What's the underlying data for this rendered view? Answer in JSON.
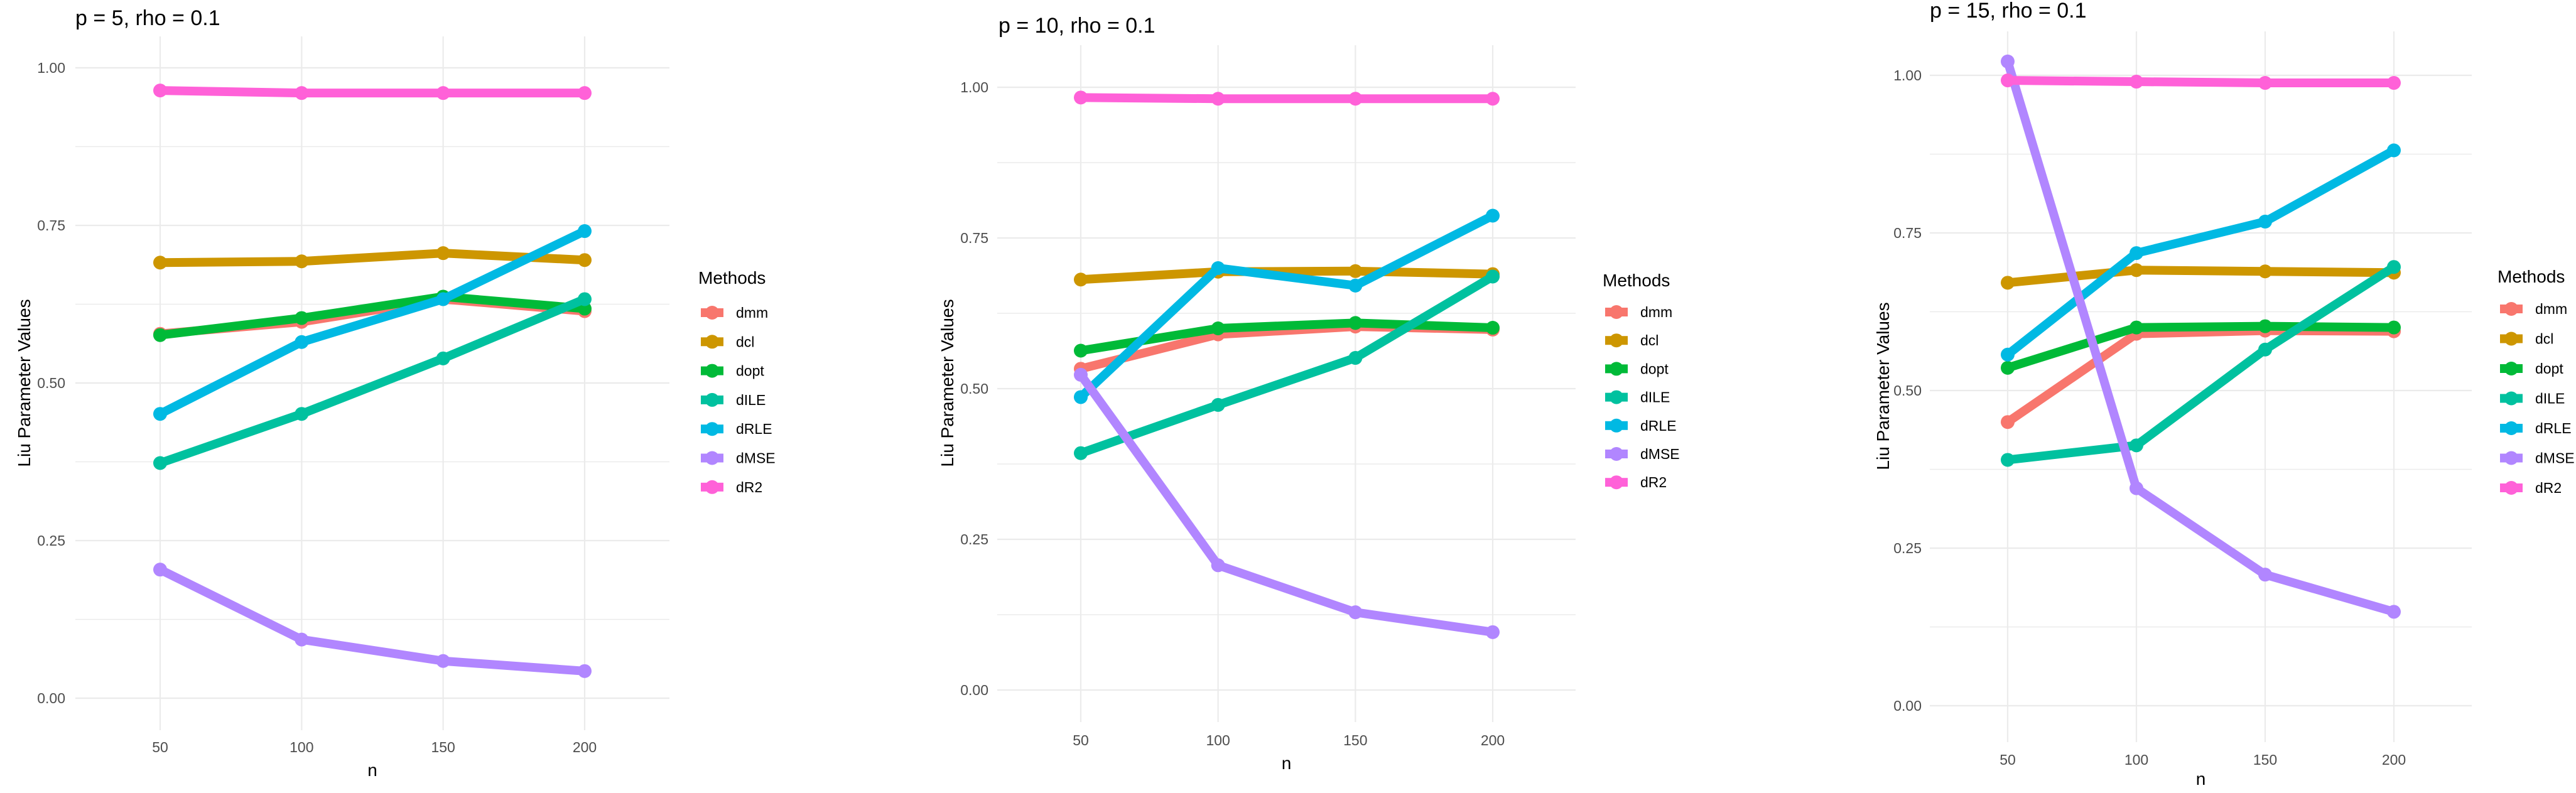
{
  "figure": {
    "legend_title": "Methods",
    "methods": [
      {
        "name": "dmm",
        "color": "#F8766D"
      },
      {
        "name": "dcl",
        "color": "#CD9600"
      },
      {
        "name": "dopt",
        "color": "#00BA38"
      },
      {
        "name": "dILE",
        "color": "#00C19F"
      },
      {
        "name": "dRLE",
        "color": "#00B9E3"
      },
      {
        "name": "dMSE",
        "color": "#B186FF"
      },
      {
        "name": "dR2",
        "color": "#FF61D8"
      }
    ]
  },
  "chart_data": [
    {
      "type": "line",
      "title": "p = 5, rho = 0.1",
      "xlabel": "n",
      "ylabel": "Liu Parameter Values",
      "x": [
        50,
        100,
        150,
        200
      ],
      "x_ticks": [
        "50",
        "100",
        "150",
        "200"
      ],
      "y_ticks": [
        "0.00",
        "0.25",
        "0.50",
        "0.75",
        "1.00"
      ],
      "ylim": [
        0,
        1
      ],
      "grid": true,
      "legend_position": "right",
      "legend_title": "Methods",
      "series": [
        {
          "name": "dmm",
          "values": [
            0.578,
            0.597,
            0.633,
            0.614
          ]
        },
        {
          "name": "dcl",
          "values": [
            0.691,
            0.693,
            0.706,
            0.695
          ]
        },
        {
          "name": "dopt",
          "values": [
            0.576,
            0.603,
            0.637,
            0.618
          ]
        },
        {
          "name": "dILE",
          "values": [
            0.373,
            0.451,
            0.539,
            0.633
          ]
        },
        {
          "name": "dRLE",
          "values": [
            0.451,
            0.565,
            0.633,
            0.741
          ]
        },
        {
          "name": "dMSE",
          "values": [
            0.204,
            0.093,
            0.059,
            0.043
          ]
        },
        {
          "name": "dR2",
          "values": [
            0.964,
            0.96,
            0.96,
            0.96
          ]
        }
      ]
    },
    {
      "type": "line",
      "title": "p = 10, rho = 0.1",
      "xlabel": "n",
      "ylabel": "Liu Parameter Values",
      "x": [
        50,
        100,
        150,
        200
      ],
      "x_ticks": [
        "50",
        "100",
        "150",
        "200"
      ],
      "y_ticks": [
        "0.00",
        "0.25",
        "0.50",
        "0.75",
        "1.00"
      ],
      "ylim": [
        0,
        1
      ],
      "grid": true,
      "legend_position": "right",
      "legend_title": "Methods",
      "series": [
        {
          "name": "dmm",
          "values": [
            0.533,
            0.59,
            0.603,
            0.598
          ]
        },
        {
          "name": "dcl",
          "values": [
            0.681,
            0.694,
            0.695,
            0.69
          ]
        },
        {
          "name": "dopt",
          "values": [
            0.563,
            0.6,
            0.609,
            0.601
          ]
        },
        {
          "name": "dILE",
          "values": [
            0.393,
            0.473,
            0.551,
            0.686
          ]
        },
        {
          "name": "dRLE",
          "values": [
            0.486,
            0.7,
            0.671,
            0.787
          ]
        },
        {
          "name": "dMSE",
          "values": [
            0.523,
            0.207,
            0.129,
            0.096
          ]
        },
        {
          "name": "dR2",
          "values": [
            0.983,
            0.981,
            0.981,
            0.981
          ]
        }
      ]
    },
    {
      "type": "line",
      "title": "p = 15, rho = 0.1",
      "xlabel": "n",
      "ylabel": "Liu Parameter Values",
      "x": [
        50,
        100,
        150,
        200
      ],
      "x_ticks": [
        "50",
        "100",
        "150",
        "200"
      ],
      "y_ticks": [
        "0.00",
        "0.25",
        "0.50",
        "0.75",
        "1.00"
      ],
      "ylim": [
        0,
        1
      ],
      "grid": true,
      "legend_position": "right",
      "legend_title": "Methods",
      "series": [
        {
          "name": "dmm",
          "values": [
            0.45,
            0.59,
            0.595,
            0.594
          ]
        },
        {
          "name": "dcl",
          "values": [
            0.671,
            0.691,
            0.689,
            0.687
          ]
        },
        {
          "name": "dopt",
          "values": [
            0.536,
            0.6,
            0.602,
            0.6
          ]
        },
        {
          "name": "dILE",
          "values": [
            0.39,
            0.413,
            0.565,
            0.696
          ]
        },
        {
          "name": "dRLE",
          "values": [
            0.557,
            0.718,
            0.768,
            0.881
          ]
        },
        {
          "name": "dMSE",
          "values": [
            1.022,
            0.345,
            0.208,
            0.149
          ]
        },
        {
          "name": "dR2",
          "values": [
            0.992,
            0.99,
            0.988,
            0.988
          ]
        }
      ]
    }
  ]
}
